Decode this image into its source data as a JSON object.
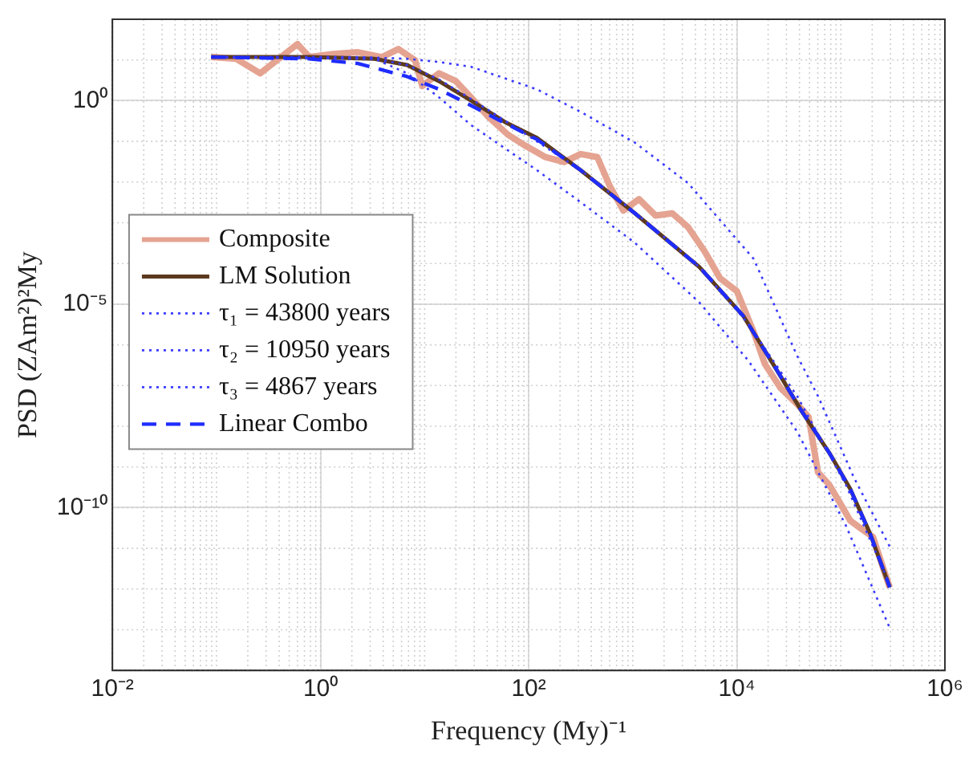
{
  "chart_data": {
    "type": "line",
    "xlabel": "Frequency (My)⁻¹",
    "ylabel": "PSD (ZAm²)²My",
    "log": "xy",
    "grid": true,
    "legend": "left",
    "xlim": [
      0.01,
      1000000
    ],
    "ylim": [
      1e-14,
      100
    ],
    "xticks": [
      {
        "value": 0.01,
        "label": "10⁻²"
      },
      {
        "value": 1,
        "label": "10⁰"
      },
      {
        "value": 100,
        "label": "10²"
      },
      {
        "value": 10000,
        "label": "10⁴"
      },
      {
        "value": 1000000,
        "label": "10⁶"
      }
    ],
    "yticks": [
      {
        "value": 1e-10,
        "label": "10⁻¹⁰"
      },
      {
        "value": 1e-05,
        "label": "10⁻⁵"
      },
      {
        "value": 1,
        "label": "10⁰"
      }
    ],
    "series": [
      {
        "name": "Composite",
        "color": "#e5a391",
        "line_style": "solid",
        "x": [
          0.089,
          0.155,
          0.263,
          0.38,
          0.6,
          0.78,
          1.33,
          2.29,
          3.89,
          5.6,
          8.1,
          9.5,
          13.8,
          20,
          28,
          41,
          63,
          93,
          145,
          219,
          316,
          457,
          603,
          813,
          1150,
          1660,
          2400,
          3390,
          4900,
          6920,
          10000,
          14500,
          18600,
          26300,
          38000,
          49000,
          60300,
          77600,
          100000,
          123000,
          158000,
          204000,
          257000,
          295000
        ],
        "values": [
          11.8,
          10.7,
          4.7,
          9.8,
          24.5,
          11.8,
          14.1,
          15.5,
          11.8,
          18.6,
          9.8,
          2.3,
          4.7,
          3.0,
          1.2,
          0.4,
          0.147,
          0.078,
          0.041,
          0.031,
          0.049,
          0.041,
          0.0079,
          0.002,
          0.0038,
          0.0015,
          0.0017,
          0.00079,
          0.0002,
          4.3e-05,
          2.1e-05,
          2.1e-06,
          3.4e-07,
          8.7e-08,
          3.5e-08,
          1.7e-08,
          7.4e-10,
          3.6e-10,
          1.2e-10,
          4.8e-11,
          3e-11,
          1.9e-11,
          3.1e-12,
          1.1e-12
        ]
      },
      {
        "name": "LM Solution",
        "color": "#5c3a1e",
        "line_style": "solid",
        "x": [
          0.089,
          0.78,
          3.3,
          6.8,
          13.8,
          28,
          59,
          120,
          316,
          1050,
          4370,
          11500,
          24000,
          42700,
          77600,
          123000,
          191000,
          295000
        ],
        "values": [
          11.8,
          11.8,
          10.7,
          7.5,
          3.0,
          1,
          0.3,
          0.122,
          0.0196,
          0.0017,
          8.2e-05,
          5.2e-06,
          2.5e-07,
          2.2e-08,
          2.2e-09,
          2.9e-10,
          2.3e-11,
          1.1e-12
        ]
      },
      {
        "name": "τ₁ = 43800 years",
        "color": "#3a3aff",
        "line_style": "dotted",
        "x": [
          0.089,
          2.29,
          6.8,
          13.8,
          28,
          120,
          316,
          1050,
          3390,
          14500,
          38000,
          60300,
          133000,
          295000
        ],
        "values": [
          11.8,
          11.8,
          10.7,
          8.9,
          6.8,
          1.9,
          0.53,
          0.093,
          0.0095,
          0.00013,
          5.4e-07,
          5.5e-08,
          5.6e-10,
          1.1e-11
        ]
      },
      {
        "name": "τ₂ = 10950 years",
        "color": "#3a3aff",
        "line_style": "dotted",
        "x": [
          0.089,
          3.3,
          6.8,
          13.8,
          28,
          120,
          316,
          1050,
          4370,
          12900,
          38000,
          112000,
          295000
        ],
        "values": [
          11.8,
          10.7,
          7.5,
          3.3,
          1.1,
          0.1,
          0.0196,
          0.0018,
          8.2e-05,
          3.3e-06,
          5.5e-08,
          3.6e-10,
          1.3e-12
        ]
      },
      {
        "name": "τ₃ = 4867 years",
        "color": "#3a3aff",
        "line_style": "dotted",
        "x": [
          0.089,
          3.3,
          6.8,
          13.8,
          28,
          120,
          316,
          1050,
          4370,
          12900,
          38000,
          112000,
          295000
        ],
        "values": [
          11.8,
          10.7,
          4.7,
          1.2,
          0.25,
          0.0196,
          0.0032,
          0.00032,
          1.1e-05,
          4.1e-07,
          7.4e-09,
          3.6e-11,
          1.1e-13
        ]
      },
      {
        "name": "Linear Combo",
        "color": "#1f2cff",
        "line_style": "dashed",
        "x": [
          0.089,
          0.78,
          2.29,
          6.8,
          13.8,
          28,
          59,
          120,
          316,
          1050,
          4370,
          11500,
          24000,
          42700,
          77600,
          123000,
          191000,
          295000
        ],
        "values": [
          11.8,
          10.7,
          8.2,
          3.9,
          1.9,
          0.76,
          0.28,
          0.112,
          0.0196,
          0.0017,
          8.2e-05,
          5.2e-06,
          2.5e-07,
          2.2e-08,
          2.2e-09,
          2.9e-10,
          2.3e-11,
          1.1e-12
        ]
      }
    ]
  }
}
